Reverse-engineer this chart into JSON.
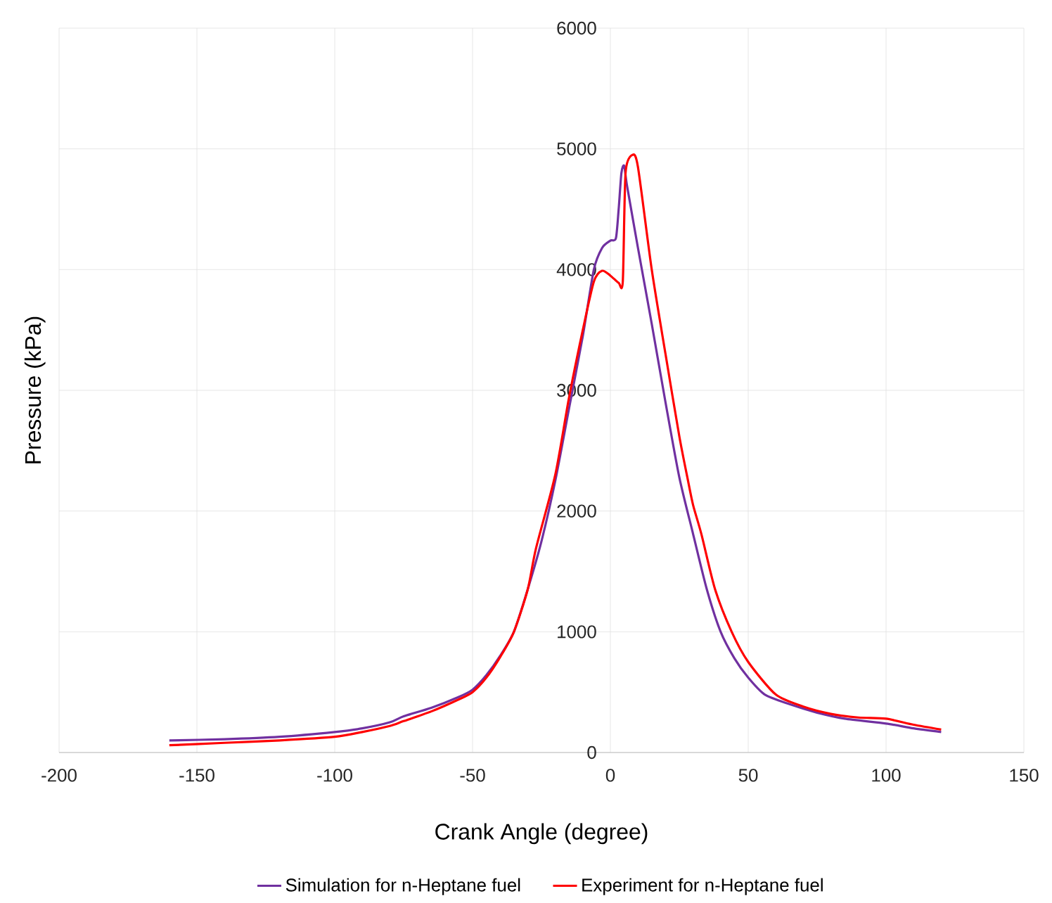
{
  "chart_data": {
    "type": "line",
    "xlabel": "Crank Angle (degree)",
    "ylabel": "Pressure (kPa)",
    "xlim": [
      -200,
      150
    ],
    "xticks": [
      -200,
      -150,
      -100,
      -50,
      0,
      50,
      100,
      150
    ],
    "ylim": [
      0,
      6000
    ],
    "yticks": [
      0,
      1000,
      2000,
      3000,
      4000,
      5000,
      6000
    ],
    "grid": true,
    "legend": "bottom",
    "marker": "none",
    "line_style": "solid",
    "series": [
      {
        "name": "Simulation for n-Heptane fuel",
        "color": "#7030a0",
        "x": [
          -160,
          -140,
          -120,
          -100,
          -90,
          -80,
          -75,
          -65,
          -55,
          -50,
          -45,
          -40,
          -35,
          -30,
          -25,
          -20,
          -15,
          -10,
          -6,
          -3,
          0,
          2,
          3,
          4,
          5,
          6,
          10,
          15,
          20,
          25,
          30,
          35,
          40,
          45,
          50,
          56,
          65,
          75,
          85,
          100,
          110,
          120
        ],
        "values": [
          100,
          110,
          130,
          170,
          200,
          250,
          300,
          370,
          460,
          520,
          640,
          800,
          1000,
          1350,
          1750,
          2250,
          2850,
          3450,
          4000,
          4180,
          4240,
          4260,
          4500,
          4800,
          4860,
          4700,
          4180,
          3550,
          2900,
          2280,
          1810,
          1350,
          1000,
          780,
          620,
          480,
          400,
          330,
          280,
          240,
          200,
          170
        ]
      },
      {
        "name": "Experiment for n-Heptane fuel",
        "color": "#ff0000",
        "x": [
          -160,
          -140,
          -120,
          -100,
          -90,
          -80,
          -75,
          -65,
          -55,
          -50,
          -45,
          -40,
          -35,
          -30,
          -27,
          -20,
          -15,
          -10,
          -6,
          -3,
          0,
          3,
          4.5,
          5.5,
          8,
          10,
          15,
          20,
          25,
          28,
          30,
          33,
          38,
          44,
          50,
          60,
          70,
          80,
          90,
          100,
          110,
          120
        ],
        "values": [
          60,
          80,
          100,
          130,
          170,
          220,
          260,
          340,
          440,
          500,
          620,
          790,
          1000,
          1350,
          1690,
          2300,
          2940,
          3500,
          3900,
          3990,
          3950,
          3890,
          3900,
          4800,
          4950,
          4850,
          4000,
          3300,
          2620,
          2270,
          2050,
          1810,
          1350,
          1000,
          750,
          480,
          380,
          320,
          290,
          280,
          230,
          190
        ]
      }
    ]
  }
}
